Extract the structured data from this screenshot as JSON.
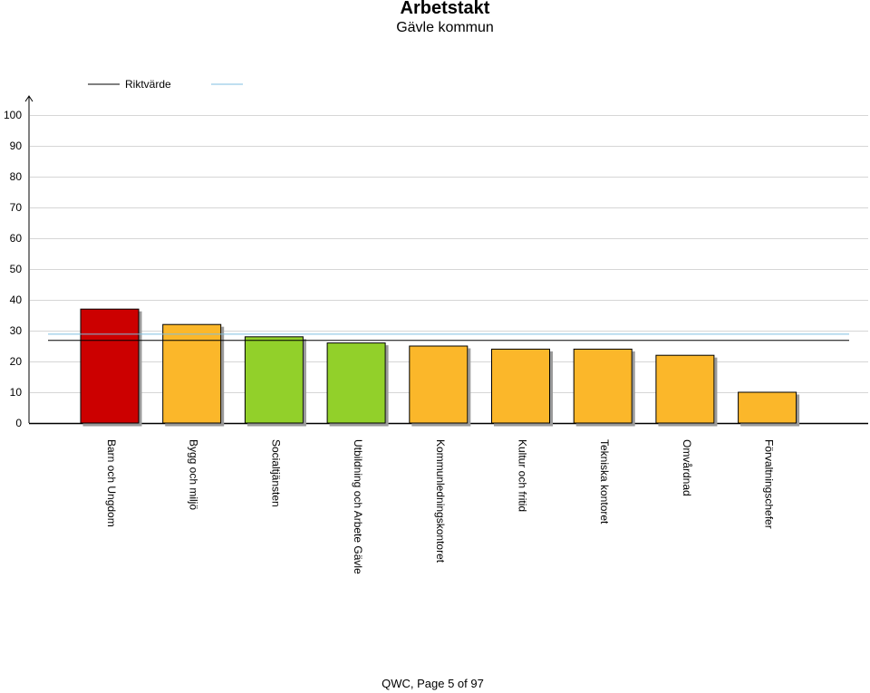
{
  "page": {
    "title": "Arbetstakt",
    "subtitle": "Gävle kommun",
    "footer": "QWC, Page 5 of 97"
  },
  "chart_data": {
    "type": "bar",
    "title": "Arbetstakt",
    "subtitle": "Gävle kommun",
    "xlabel": "",
    "ylabel": "",
    "ylim": [
      0,
      100
    ],
    "yticks": [
      0,
      10,
      20,
      30,
      40,
      50,
      60,
      70,
      80,
      90,
      100
    ],
    "grid": true,
    "legend_position": "top-left",
    "categories": [
      "Barn och Ungdom",
      "Bygg och miljö",
      "Socialtjänsten",
      "Utbildning och Arbete Gävle",
      "Kommunledningskontoret",
      "Kultur och fritid",
      "Tekniska kontoret",
      "Omvårdnad",
      "Förvaltningschefer"
    ],
    "values": [
      37,
      32,
      28,
      26,
      25,
      24,
      24,
      22,
      10
    ],
    "bar_colors": [
      "#cc0000",
      "#fbb72b",
      "#92d02a",
      "#92d02a",
      "#fbb72b",
      "#fbb72b",
      "#fbb72b",
      "#fbb72b",
      "#fbb72b"
    ],
    "reference_lines": [
      {
        "name": "Riktvärde",
        "value": 27,
        "color": "#000000"
      },
      {
        "name": "",
        "value": 29,
        "color": "#7fbfe0"
      }
    ],
    "legend": [
      {
        "label": "Riktvärde",
        "color": "#000000"
      },
      {
        "label": "",
        "color": "#7fbfe0"
      }
    ]
  }
}
